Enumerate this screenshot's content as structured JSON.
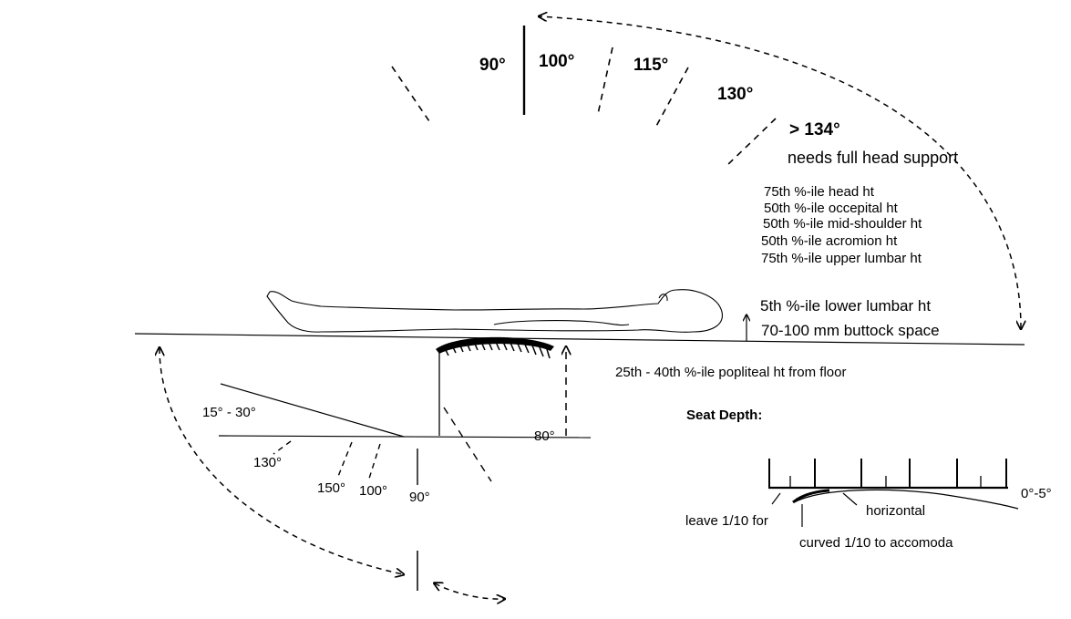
{
  "recline_angles": {
    "a90": "90°",
    "a100": "100°",
    "a115": "115°",
    "a130": "130°",
    "a134": "> 134°",
    "head_note": "needs full head support"
  },
  "backrest_heights": [
    "75th %-ile head ht",
    "50th %-ile occepital ht",
    "50th %-ile mid-shoulder ht",
    "50th %-ile acromion ht",
    "75th %-ile upper lumbar ht"
  ],
  "lumbar_label": "5th %-ile lower lumbar ht",
  "buttock_label": "70-100 mm buttock space",
  "popliteal_label": "25th - 40th %-ile popliteal ht from floor",
  "leg_angles": {
    "tilt": "15° - 30°",
    "a130": "130°",
    "a150": "150°",
    "a100": "100°",
    "a90": "90°",
    "a80": "80°"
  },
  "seat_depth": {
    "title": "Seat Depth:",
    "horizontal": "horizontal",
    "tilt_range": "0°-5°",
    "leave_note": "leave 1/10 for",
    "curved_note": "curved 1/10 to accomoda"
  }
}
